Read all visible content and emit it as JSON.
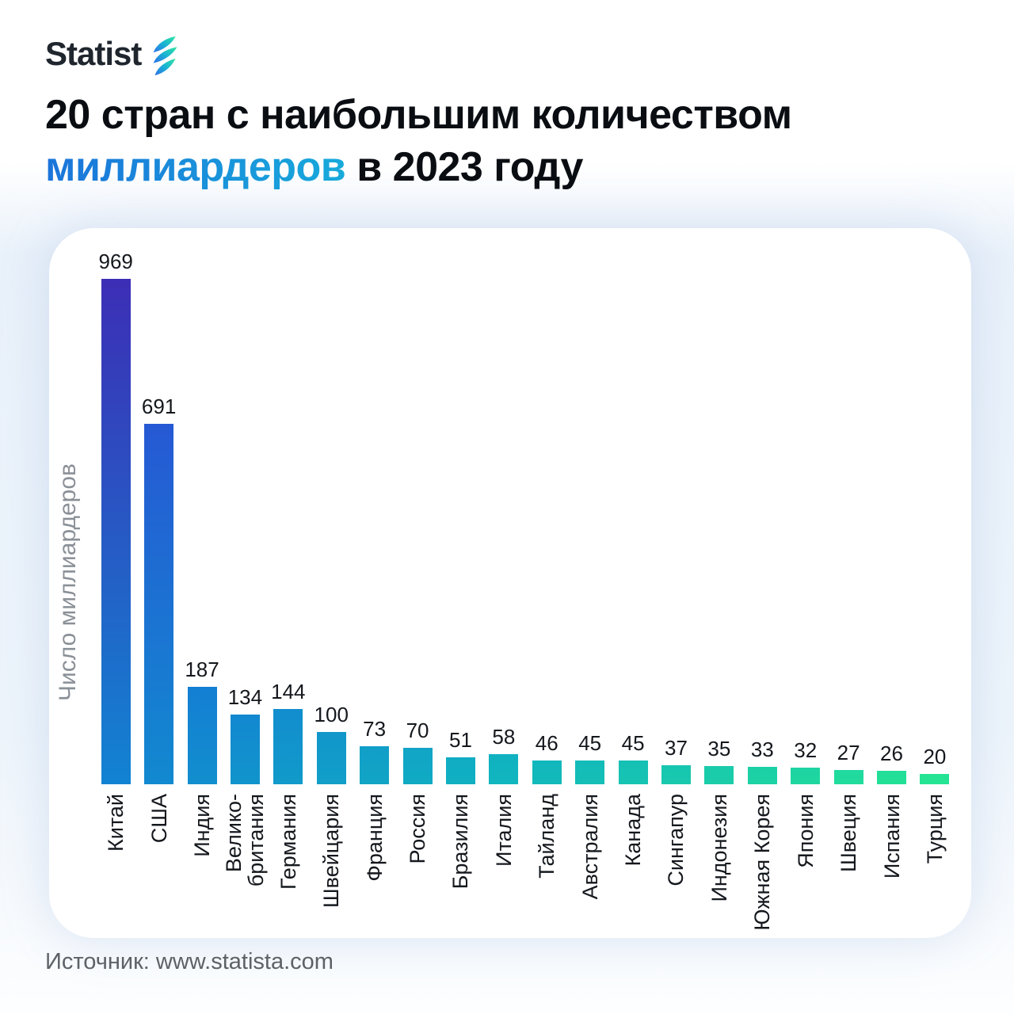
{
  "logo": {
    "text": "Statist",
    "icon": "leaf-logo-icon"
  },
  "title": {
    "line1": "20 стран с наибольшим количеством",
    "highlight": "миллиардеров",
    "line2_rest": " в 2023 году",
    "highlight_colors": [
      "#1b74da",
      "#18aadb"
    ]
  },
  "chart_data": {
    "type": "bar",
    "title": "20 стран с наибольшим количеством миллиардеров в 2023 году",
    "ylabel": "Число миллиардеров",
    "xlabel": "",
    "categories": [
      "Китай",
      "США",
      "Индия",
      "Велико-\nбритания",
      "Германия",
      "Швейцария",
      "Франция",
      "Россия",
      "Бразилия",
      "Италия",
      "Тайланд",
      "Австралия",
      "Канада",
      "Сингапур",
      "Индонезия",
      "Южная Корея",
      "Япония",
      "Швеция",
      "Испания",
      "Турция"
    ],
    "values": [
      969,
      691,
      187,
      134,
      144,
      100,
      73,
      70,
      51,
      58,
      46,
      45,
      45,
      37,
      35,
      33,
      32,
      27,
      26,
      20
    ],
    "ylim": [
      0,
      969
    ],
    "grid": false,
    "legend": false,
    "value_labels": true,
    "bar_gradient": {
      "stops": [
        "#3C2EB6",
        "#2064DC",
        "#1283D2",
        "#10B4C0",
        "#25E593"
      ],
      "positions": [
        0,
        0.2,
        0.45,
        0.7,
        1
      ]
    }
  },
  "footer": {
    "source": "Источник: www.statista.com"
  }
}
